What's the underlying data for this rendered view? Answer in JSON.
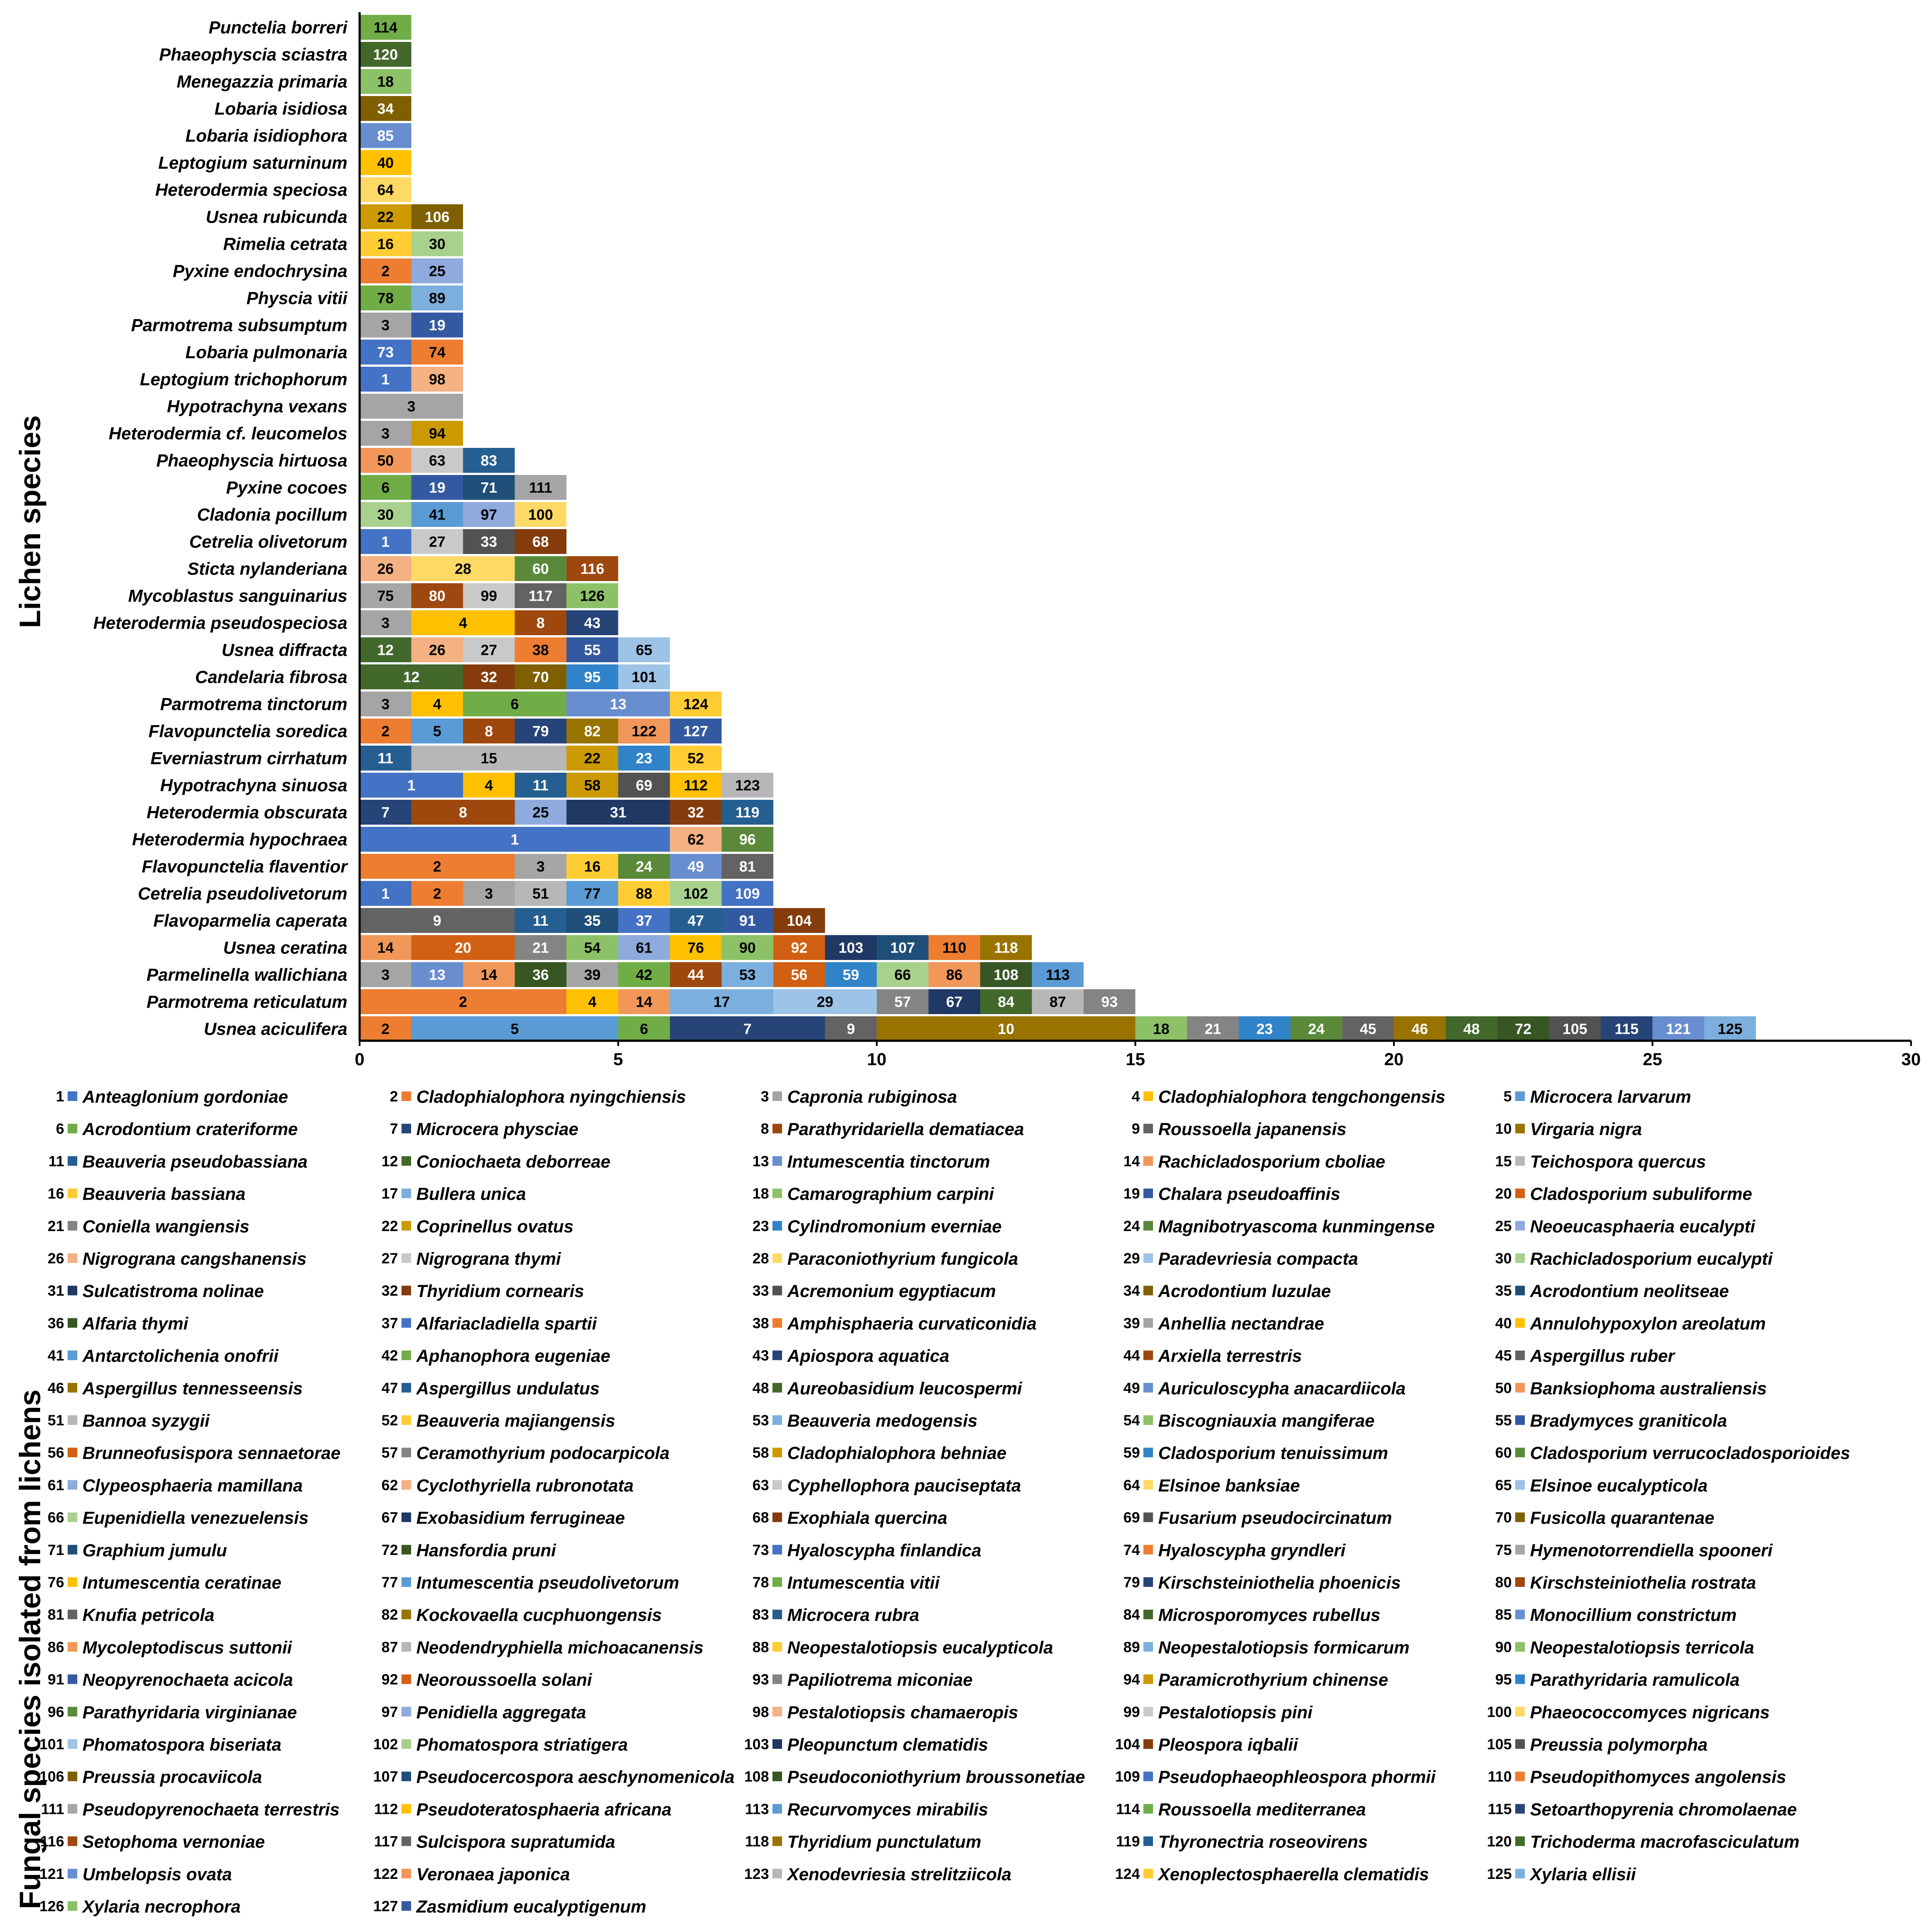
{
  "chart_data": {
    "type": "bar",
    "orientation": "horizontal",
    "stacked": true,
    "title": "",
    "xlabel": "",
    "ylabel": "Lichen species",
    "legend_title": "Fungal species isolated from lichens",
    "xlim": [
      0,
      30
    ],
    "x_ticks": [
      "0",
      "5",
      "10",
      "15",
      "20",
      "25",
      "30"
    ],
    "categories": [
      "Punctelia borreri",
      "Phaeophyscia sciastra",
      "Menegazzia primaria",
      "Lobaria isidiosa",
      "Lobaria isidiophora",
      "Leptogium saturninum",
      "Heterodermia speciosa",
      "Usnea rubicunda",
      "Rimelia cetrata",
      "Pyxine endochrysina",
      "Physcia vitii",
      "Parmotrema subsumptum",
      "Lobaria pulmonaria",
      "Leptogium trichophorum",
      "Hypotrachyna vexans",
      "Heterodermia cf. leucomelos",
      "Phaeophyscia hirtuosa",
      "Pyxine cocoes",
      "Cladonia pocillum",
      "Cetrelia olivetorum",
      "Sticta nylanderiana",
      "Mycoblastus sanguinarius",
      "Heterodermia pseudospeciosa",
      "Usnea diffracta",
      "Candelaria fibrosa",
      "Parmotrema tinctorum",
      "Flavopunctelia soredica",
      "Everniastrum cirrhatum",
      "Hypotrachyna sinuosa",
      "Heterodermia obscurata",
      "Heterodermia hypochraea",
      "Flavopunctelia flaventior",
      "Cetrelia pseudolivetorum",
      "Flavoparmelia caperata",
      "Usnea ceratina",
      "Parmelinella wallichiana",
      "Parmotrema reticulatum",
      "Usnea aciculifera"
    ],
    "stacks": [
      [
        [
          114,
          1
        ]
      ],
      [
        [
          120,
          1
        ]
      ],
      [
        [
          18,
          1
        ]
      ],
      [
        [
          34,
          1
        ]
      ],
      [
        [
          85,
          1
        ]
      ],
      [
        [
          40,
          1
        ]
      ],
      [
        [
          64,
          1
        ]
      ],
      [
        [
          22,
          1
        ],
        [
          106,
          1
        ]
      ],
      [
        [
          16,
          1
        ],
        [
          30,
          1
        ]
      ],
      [
        [
          2,
          1
        ],
        [
          25,
          1
        ]
      ],
      [
        [
          78,
          1
        ],
        [
          89,
          1
        ]
      ],
      [
        [
          3,
          1
        ],
        [
          19,
          1
        ]
      ],
      [
        [
          73,
          1
        ],
        [
          74,
          1
        ]
      ],
      [
        [
          1,
          1
        ],
        [
          98,
          1
        ]
      ],
      [
        [
          3,
          2
        ]
      ],
      [
        [
          3,
          1
        ],
        [
          94,
          1
        ]
      ],
      [
        [
          50,
          1
        ],
        [
          63,
          1
        ],
        [
          83,
          1
        ]
      ],
      [
        [
          6,
          1
        ],
        [
          19,
          1
        ],
        [
          71,
          1
        ],
        [
          111,
          1
        ]
      ],
      [
        [
          30,
          1
        ],
        [
          41,
          1
        ],
        [
          97,
          1
        ],
        [
          100,
          1
        ]
      ],
      [
        [
          1,
          1
        ],
        [
          27,
          1
        ],
        [
          33,
          1
        ],
        [
          68,
          1
        ]
      ],
      [
        [
          26,
          1
        ],
        [
          28,
          2
        ],
        [
          60,
          1
        ],
        [
          116,
          1
        ]
      ],
      [
        [
          75,
          1
        ],
        [
          80,
          1
        ],
        [
          99,
          1
        ],
        [
          117,
          1
        ],
        [
          126,
          1
        ]
      ],
      [
        [
          3,
          1
        ],
        [
          4,
          2
        ],
        [
          8,
          1
        ],
        [
          43,
          1
        ]
      ],
      [
        [
          12,
          1
        ],
        [
          26,
          1
        ],
        [
          27,
          1
        ],
        [
          38,
          1
        ],
        [
          55,
          1
        ],
        [
          65,
          1
        ]
      ],
      [
        [
          12,
          2
        ],
        [
          32,
          1
        ],
        [
          70,
          1
        ],
        [
          95,
          1
        ],
        [
          101,
          1
        ]
      ],
      [
        [
          3,
          1
        ],
        [
          4,
          1
        ],
        [
          6,
          2
        ],
        [
          13,
          2
        ],
        [
          124,
          1
        ]
      ],
      [
        [
          2,
          1
        ],
        [
          5,
          1
        ],
        [
          8,
          1
        ],
        [
          79,
          1
        ],
        [
          82,
          1
        ],
        [
          122,
          1
        ],
        [
          127,
          1
        ]
      ],
      [
        [
          11,
          1
        ],
        [
          15,
          3
        ],
        [
          22,
          1
        ],
        [
          23,
          1
        ],
        [
          52,
          1
        ]
      ],
      [
        [
          1,
          2
        ],
        [
          4,
          1
        ],
        [
          11,
          1
        ],
        [
          58,
          1
        ],
        [
          69,
          1
        ],
        [
          112,
          1
        ],
        [
          123,
          1
        ]
      ],
      [
        [
          7,
          1
        ],
        [
          8,
          2
        ],
        [
          25,
          1
        ],
        [
          31,
          2
        ],
        [
          32,
          1
        ],
        [
          119,
          1
        ]
      ],
      [
        [
          1,
          6
        ],
        [
          62,
          1
        ],
        [
          96,
          1
        ]
      ],
      [
        [
          2,
          3
        ],
        [
          3,
          1
        ],
        [
          16,
          1
        ],
        [
          24,
          1
        ],
        [
          49,
          1
        ],
        [
          81,
          1
        ]
      ],
      [
        [
          1,
          1
        ],
        [
          2,
          1
        ],
        [
          3,
          1
        ],
        [
          51,
          1
        ],
        [
          77,
          1
        ],
        [
          88,
          1
        ],
        [
          102,
          1
        ],
        [
          109,
          1
        ]
      ],
      [
        [
          9,
          3
        ],
        [
          11,
          1
        ],
        [
          35,
          1
        ],
        [
          37,
          1
        ],
        [
          47,
          1
        ],
        [
          91,
          1
        ],
        [
          104,
          1
        ]
      ],
      [
        [
          14,
          1
        ],
        [
          20,
          2
        ],
        [
          21,
          1
        ],
        [
          54,
          1
        ],
        [
          61,
          1
        ],
        [
          76,
          1
        ],
        [
          90,
          1
        ],
        [
          92,
          1
        ],
        [
          103,
          1
        ],
        [
          107,
          1
        ],
        [
          110,
          1
        ],
        [
          118,
          1
        ]
      ],
      [
        [
          3,
          1
        ],
        [
          13,
          1
        ],
        [
          14,
          1
        ],
        [
          36,
          1
        ],
        [
          39,
          1
        ],
        [
          42,
          1
        ],
        [
          44,
          1
        ],
        [
          53,
          1
        ],
        [
          56,
          1
        ],
        [
          59,
          1
        ],
        [
          66,
          1
        ],
        [
          86,
          1
        ],
        [
          108,
          1
        ],
        [
          113,
          1
        ]
      ],
      [
        [
          2,
          4
        ],
        [
          4,
          1
        ],
        [
          14,
          1
        ],
        [
          17,
          2
        ],
        [
          29,
          2
        ],
        [
          57,
          1
        ],
        [
          67,
          1
        ],
        [
          84,
          1
        ],
        [
          87,
          1
        ],
        [
          93,
          1
        ]
      ],
      [
        [
          2,
          1
        ],
        [
          5,
          4
        ],
        [
          6,
          1
        ],
        [
          7,
          3
        ],
        [
          9,
          1
        ],
        [
          10,
          5
        ],
        [
          18,
          1
        ],
        [
          21,
          1
        ],
        [
          23,
          1
        ],
        [
          24,
          1
        ],
        [
          45,
          1
        ],
        [
          46,
          1
        ],
        [
          48,
          1
        ],
        [
          72,
          1
        ],
        [
          105,
          1
        ],
        [
          115,
          1
        ],
        [
          121,
          1
        ],
        [
          125,
          1
        ]
      ]
    ],
    "fungi": [
      "Anteaglonium gordoniae",
      "Cladophialophora nyingchiensis",
      "Capronia rubiginosa",
      "Cladophialophora tengchongensis",
      "Microcera larvarum",
      "Acrodontium crateriforme",
      "Microcera physciae",
      "Parathyridariella dematiacea",
      "Roussoella japanensis",
      "Virgaria nigra",
      "Beauveria pseudobassiana",
      "Coniochaeta deborreae",
      "Intumescentia tinctorum",
      "Rachicladosporium cboliae",
      "Teichospora quercus",
      "Beauveria bassiana",
      "Bullera unica",
      "Camarographium carpini",
      "Chalara pseudoaffinis",
      "Cladosporium subuliforme",
      "Coniella wangiensis",
      "Coprinellus ovatus",
      "Cylindromonium everniae",
      "Magnibotryascoma kunmingense",
      "Neoeucasphaeria eucalypti",
      "Nigrograna cangshanensis",
      "Nigrograna thymi",
      "Paraconiothyrium fungicola",
      "Paradevriesia compacta",
      "Rachicladosporium eucalypti",
      "Sulcatistroma nolinae",
      "Thyridium cornearis",
      "Acremonium egyptiacum",
      "Acrodontium luzulae",
      "Acrodontium neolitseae",
      "Alfaria thymi",
      "Alfariacladiella spartii",
      "Amphisphaeria curvaticonidia",
      "Anhellia nectandrae",
      "Annulohypoxylon areolatum",
      "Antarctolichenia onofrii",
      "Aphanophora eugeniae",
      "Apiospora aquatica",
      "Arxiella terrestris",
      "Aspergillus ruber",
      "Aspergillus tennesseensis",
      "Aspergillus undulatus",
      "Aureobasidium leucospermi",
      "Auriculoscypha anacardiicola",
      "Banksiophoma australiensis",
      "Bannoa syzygii",
      "Beauveria majiangensis",
      "Beauveria medogensis",
      "Biscogniauxia mangiferae",
      "Bradymyces graniticola",
      "Brunneofusispora sennaetorae",
      "Ceramothyrium podocarpicola",
      "Cladophialophora behniae",
      "Cladosporium tenuissimum",
      "Cladosporium verrucocladosporioides",
      "Clypeosphaeria mamillana",
      "Cyclothyriella rubronotata",
      "Cyphellophora pauciseptata",
      "Elsinoe banksiae",
      "Elsinoe eucalypticola",
      "Eupenidiella venezuelensis",
      "Exobasidium ferrugineae",
      "Exophiala quercina",
      "Fusarium pseudocircinatum",
      "Fusicolla quarantenae",
      "Graphium jumulu",
      "Hansfordia pruni",
      "Hyaloscypha finlandica",
      "Hyaloscypha gryndleri",
      "Hymenotorrendiella spooneri",
      "Intumescentia ceratinae",
      "Intumescentia pseudolivetorum",
      "Intumescentia vitii",
      "Kirschsteiniothelia phoenicis",
      "Kirschsteiniothelia rostrata",
      "Knufia petricola",
      "Kockovaella cucphuongensis",
      "Microcera rubra",
      "Microsporomyces rubellus",
      "Monocillium constrictum",
      "Mycoleptodiscus suttonii",
      "Neodendryphiella michoacanensis",
      "Neopestalotiopsis eucalypticola",
      "Neopestalotiopsis formicarum",
      "Neopestalotiopsis terricola",
      "Neopyrenochaeta acicola",
      "Neoroussoella solani",
      "Papiliotrema miconiae",
      "Paramicrothyrium chinense",
      "Parathyridaria ramulicola",
      "Parathyridaria virginianae",
      "Penidiella aggregata",
      "Pestalotiopsis chamaeropis",
      "Pestalotiopsis pini",
      "Phaeococcomyces nigricans",
      "Phomatospora biseriata",
      "Phomatospora striatigera",
      "Pleopunctum clematidis",
      "Pleospora iqbalii",
      "Preussia polymorpha",
      "Preussia procaviicola",
      "Pseudocercospora aeschynomenicola",
      "Pseudoconiothyrium broussonetiae",
      "Pseudophaeophleospora phormii",
      "Pseudopithomyces angolensis",
      "Pseudopyrenochaeta terrestris",
      "Pseudoteratosphaeria africana",
      "Recurvomyces mirabilis",
      "Roussoella mediterranea",
      "Setoarthopyrenia chromolaenae",
      "Setophoma vernoniae",
      "Sulcispora supratumida",
      "Thyridium punctulatum",
      "Thyronectria roseovirens",
      "Trichoderma macrofasciculatum",
      "Umbelopsis ovata",
      "Veronaea japonica",
      "Xenodevriesia strelitziicola",
      "Xenoplectosphaerella clematidis",
      "Xylaria ellisii",
      "Xylaria necrophora",
      "Zasmidium eucalyptigenum"
    ],
    "palette": [
      "#4472c4",
      "#ed7d31",
      "#a5a5a5",
      "#ffc000",
      "#5b9bd5",
      "#70ad47",
      "#264478",
      "#9e480e",
      "#636363",
      "#997300",
      "#255e91",
      "#43682b",
      "#698ed0",
      "#f1975a",
      "#b7b7b7",
      "#ffcd33",
      "#7cafdd",
      "#8cc168",
      "#335aa1",
      "#d26012",
      "#848484",
      "#cc9a00",
      "#3083c9",
      "#5a8a39",
      "#8faadc",
      "#f4b183",
      "#c9c9c9",
      "#ffd966",
      "#9dc3e6",
      "#a9d18e",
      "#1f3864",
      "#843c0c",
      "#525252",
      "#7f6000",
      "#1f4e79",
      "#375623"
    ]
  }
}
